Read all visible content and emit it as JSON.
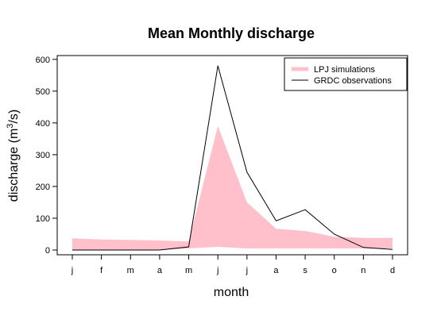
{
  "chart_data": {
    "type": "area",
    "title": "Mean Monthly discharge",
    "xlabel": "month",
    "ylabel": "discharge (m",
    "ylabel_superscript": "3",
    "ylabel_suffix": "/s)",
    "categories": [
      "j",
      "f",
      "m",
      "a",
      "m",
      "j",
      "j",
      "a",
      "s",
      "o",
      "n",
      "d"
    ],
    "yticks": [
      0,
      100,
      200,
      300,
      400,
      500,
      600
    ],
    "ylim": [
      -15,
      612
    ],
    "grid": false,
    "legend_position": "top-right",
    "series": [
      {
        "name": "LPJ simulations",
        "kind": "band",
        "color": "#ffc0cb",
        "upper": [
          37,
          33,
          32,
          30,
          27,
          390,
          150,
          67,
          60,
          42,
          38,
          38
        ],
        "lower": [
          0,
          0,
          0,
          0,
          5,
          10,
          5,
          5,
          5,
          5,
          5,
          5
        ]
      },
      {
        "name": "GRDC observations",
        "kind": "line",
        "color": "#000000",
        "values": [
          0,
          0,
          0,
          0,
          10,
          580,
          245,
          92,
          127,
          50,
          8,
          2
        ]
      }
    ]
  }
}
